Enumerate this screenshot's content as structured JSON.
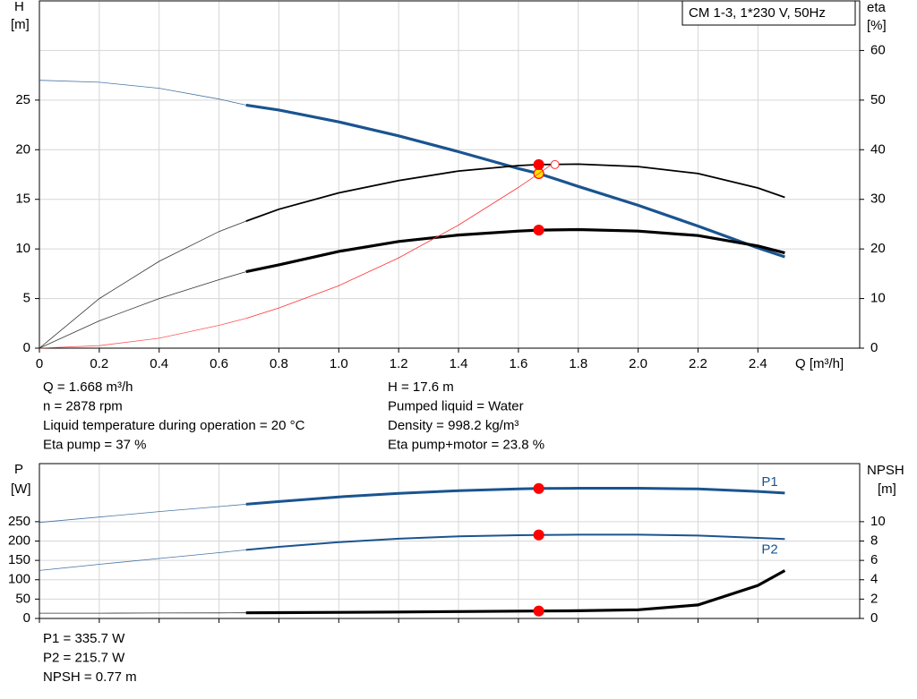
{
  "chart_data": [
    {
      "type": "line",
      "title": "CM 1-3, 1*230 V, 50Hz",
      "y_label": "H",
      "y_unit": "[m]",
      "y2_label": "eta",
      "y2_unit": "[%]",
      "x_label": "Q [m³/h]",
      "xlim": [
        0,
        2.74
      ],
      "ylim": [
        0,
        35
      ],
      "y2lim": [
        0,
        70
      ],
      "xticks": [
        0,
        0.2,
        0.4,
        0.6,
        0.8,
        {
          "value": 1,
          "label": "1.0"
        },
        1.2,
        1.4,
        1.6,
        1.8,
        {
          "value": 2,
          "label": "2.0"
        },
        2.2,
        2.4
      ],
      "yticks": [
        0,
        5,
        10,
        15,
        20,
        25
      ],
      "y2ticks": [
        0,
        10,
        20,
        30,
        40,
        50,
        60
      ],
      "grid": true,
      "duty_x": 1.668,
      "thick_from_x": 0.69,
      "series": [
        {
          "color": "#1a5490",
          "width": 3.2,
          "marker_color": "#ffe600",
          "x": [
            0,
            0.2,
            0.4,
            0.6,
            0.69,
            0.8,
            1.0,
            1.2,
            1.4,
            1.6,
            1.668,
            1.8,
            2.0,
            2.2,
            2.4,
            2.49
          ],
          "values": [
            27,
            26.8,
            26.2,
            25.1,
            24.5,
            24.0,
            22.8,
            21.4,
            19.8,
            18.1,
            17.6,
            16.3,
            14.4,
            12.3,
            10.1,
            9.2
          ]
        },
        {
          "color": "#000000",
          "width": 1.8,
          "marker_color": "#ff0000",
          "axis": "y2",
          "x": [
            0,
            0.2,
            0.4,
            0.6,
            0.69,
            0.8,
            1.0,
            1.2,
            1.4,
            1.6,
            1.668,
            1.8,
            2.0,
            2.2,
            2.4,
            2.49
          ],
          "values": [
            0,
            10,
            17.5,
            23.5,
            25.6,
            28,
            31.3,
            33.8,
            35.7,
            36.8,
            37,
            37.1,
            36.6,
            35.2,
            32.3,
            30.4
          ]
        },
        {
          "color": "#000000",
          "width": 3.2,
          "marker_color": "#ff0000",
          "axis": "y2",
          "x": [
            0,
            0.2,
            0.4,
            0.6,
            0.69,
            0.8,
            1.0,
            1.2,
            1.4,
            1.6,
            1.668,
            1.8,
            2.0,
            2.2,
            2.4,
            2.49
          ],
          "values": [
            0,
            5.5,
            10,
            13.8,
            15.4,
            16.8,
            19.5,
            21.5,
            22.8,
            23.6,
            23.8,
            23.9,
            23.6,
            22.7,
            20.6,
            19.2
          ]
        },
        {
          "color": "#ff3030",
          "width": 0.8,
          "end_marker_color": "#ffffff",
          "x": [
            0,
            0.2,
            0.4,
            0.6,
            0.69,
            0.8,
            1.0,
            1.2,
            1.4,
            1.6,
            1.668,
            1.71
          ],
          "values": [
            0,
            0.25,
            1.0,
            2.3,
            3.0,
            4.05,
            6.3,
            9.1,
            12.4,
            16.2,
            17.6,
            18.5
          ]
        }
      ]
    },
    {
      "type": "line",
      "y_label": "P",
      "y_unit": "[W]",
      "y2_label": "NPSH",
      "y2_unit": "[m]",
      "xlim": [
        0,
        2.74
      ],
      "ylim": [
        0,
        400
      ],
      "y2lim": [
        0,
        16
      ],
      "xticks": [
        0,
        0.2,
        0.4,
        0.6,
        0.8,
        1,
        1.2,
        1.4,
        1.6,
        1.8,
        2,
        2.2,
        2.4
      ],
      "yticks": [
        0,
        50,
        100,
        150,
        200,
        250
      ],
      "y2ticks": [
        0,
        2,
        4,
        6,
        8,
        10
      ],
      "grid": true,
      "duty_x": 1.668,
      "thick_from_x": 0.69,
      "series": [
        {
          "name": "P1",
          "label_position": "above",
          "color": "#1a5490",
          "width": 3,
          "marker_color": "#ff0000",
          "x": [
            0,
            0.2,
            0.4,
            0.6,
            0.69,
            0.8,
            1.0,
            1.2,
            1.4,
            1.6,
            1.668,
            1.8,
            2.0,
            2.2,
            2.4,
            2.49
          ],
          "values": [
            248,
            262,
            276,
            289,
            295,
            302,
            314,
            323,
            330,
            334.5,
            335.7,
            336.5,
            336.5,
            334.5,
            328,
            324
          ]
        },
        {
          "name": "P2",
          "label_position": "below",
          "color": "#1a5490",
          "width": 2,
          "marker_color": "#ff0000",
          "x": [
            0,
            0.2,
            0.4,
            0.6,
            0.69,
            0.8,
            1.0,
            1.2,
            1.4,
            1.6,
            1.668,
            1.8,
            2.0,
            2.2,
            2.4,
            2.49
          ],
          "values": [
            124,
            140,
            155,
            170,
            177,
            185,
            197,
            206,
            212,
            215,
            215.7,
            216.5,
            216.5,
            214,
            208,
            205
          ]
        },
        {
          "color": "#000000",
          "width": 3.2,
          "marker_color": "#ff0000",
          "axis": "y2",
          "x": [
            0,
            0.2,
            0.4,
            0.6,
            0.69,
            0.8,
            1.0,
            1.2,
            1.4,
            1.6,
            1.668,
            1.8,
            2.0,
            2.2,
            2.4,
            2.49
          ],
          "values": [
            0.55,
            0.55,
            0.56,
            0.57,
            0.58,
            0.6,
            0.63,
            0.67,
            0.71,
            0.76,
            0.77,
            0.8,
            0.9,
            1.4,
            3.4,
            4.95
          ]
        }
      ]
    }
  ],
  "readouts": [
    [
      "Q = 1.668 m³/h",
      "n = 2878 rpm",
      "Liquid temperature during operation = 20 °C",
      "Eta pump = 37 %"
    ],
    [
      "H = 17.6 m",
      "Pumped liquid = Water",
      "Density = 998.2 kg/m³",
      "Eta pump+motor = 23.8 %"
    ],
    [
      "P1 = 335.7 W",
      "P2 = 215.7 W",
      "NPSH = 0.77 m"
    ]
  ]
}
